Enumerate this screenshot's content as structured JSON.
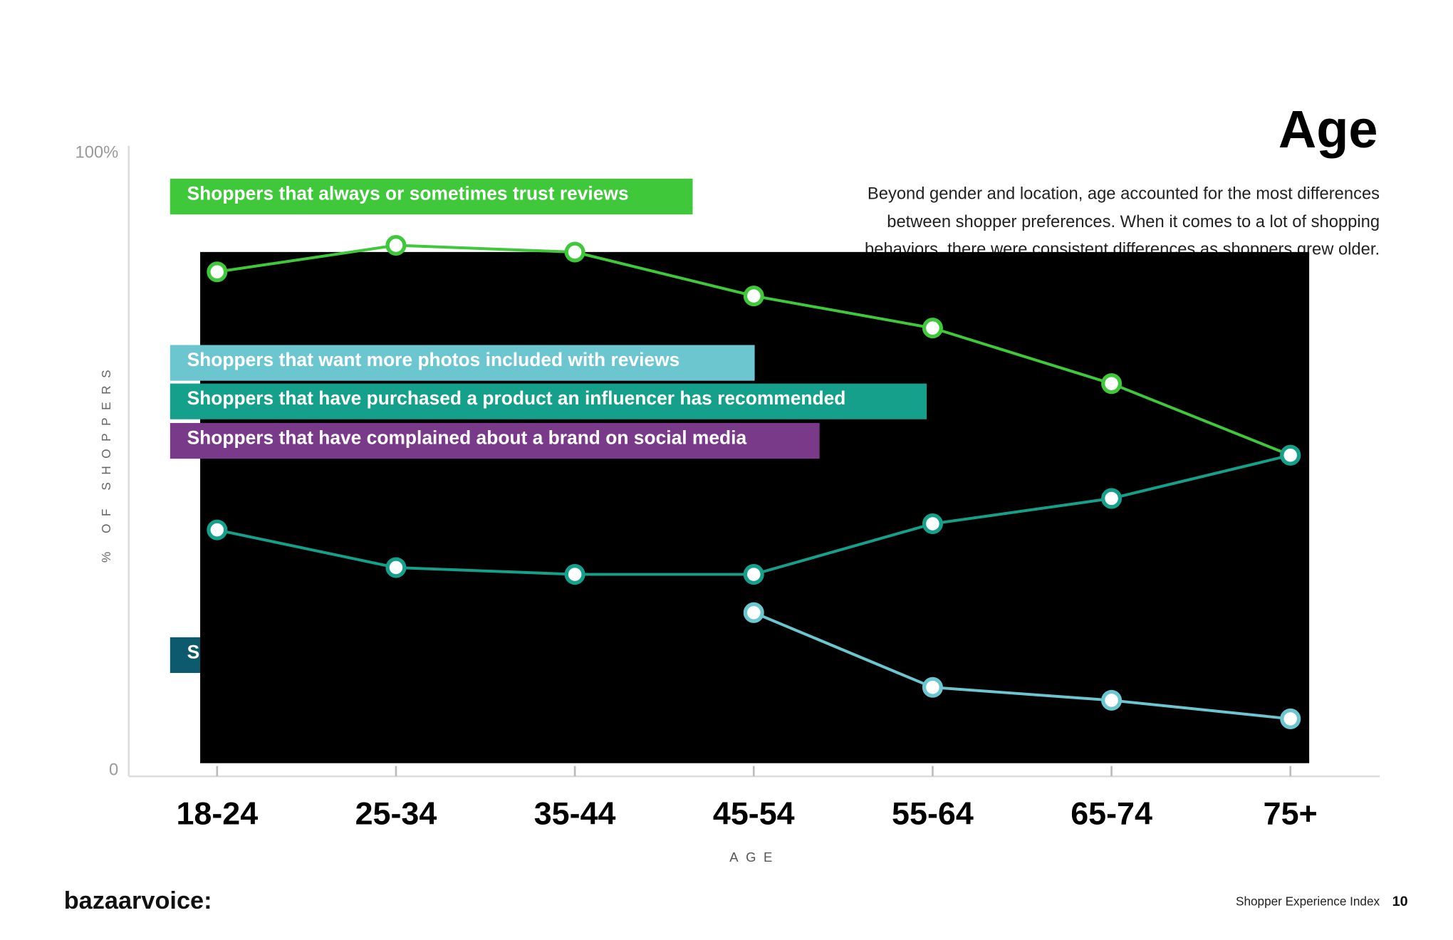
{
  "chart_data": {
    "type": "line",
    "title": "Age",
    "description": [
      "Beyond gender and location, age accounted for the most differences",
      "between shopper preferences. When it comes to a lot of shopping",
      "behaviors, there were consistent differences as shoppers grew older."
    ],
    "x_label": "AGE",
    "y_label": "% OF SHOPPERS",
    "categories": [
      "18-24",
      "25-34",
      "35-44",
      "45-54",
      "55-64",
      "65-74",
      "75+"
    ],
    "ylim": [
      0,
      100
    ],
    "yticks": [
      0,
      {
        "value": 100,
        "label": "100%"
      }
    ],
    "series": [
      {
        "name": "Shoppers that always or sometimes trust reviews",
        "color": "#3ec83a",
        "values": [
          80.8,
          85.1,
          84.0,
          76.9,
          71.7,
          62.7,
          51.1
        ]
      },
      {
        "name": "Shoppers that want more photos included with reviews",
        "color": "#6cc6d0",
        "values": [
          null,
          null,
          null,
          25.6,
          13.5,
          11.4,
          8.4
        ]
      },
      {
        "name": "Shoppers that have purchased a product an influencer has recommended",
        "color": "#15a08c",
        "values": [
          39.0,
          32.9,
          31.8,
          31.8,
          40.0,
          44.1,
          51.1
        ]
      },
      {
        "name": "Shoppers that have complained about a brand on social media",
        "color": "#7a3a8a",
        "values": [
          null,
          null,
          null,
          null,
          null,
          null,
          null
        ]
      },
      {
        "name": "Sh",
        "color": "#0d5a6e",
        "values": [
          null,
          null,
          null,
          null,
          null,
          null,
          null
        ]
      }
    ],
    "footer": {
      "brand": "bazaarvoice:",
      "publication": "Shopper Experience Index",
      "page": "10"
    }
  }
}
